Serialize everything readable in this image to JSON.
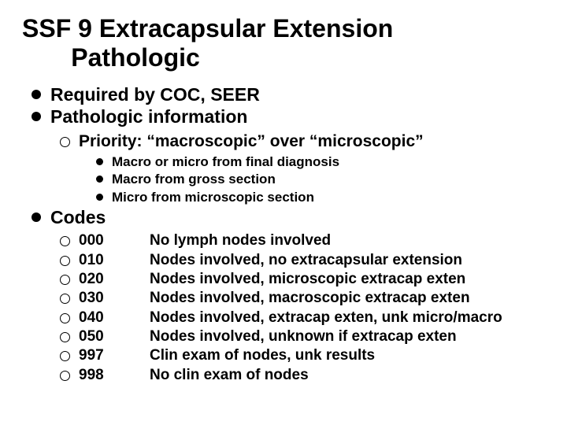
{
  "title_line1": "SSF 9  Extracapsular Extension",
  "title_line2": "Pathologic",
  "items": [
    {
      "text": "Required by COC, SEER"
    },
    {
      "text": "Pathologic information",
      "sub": [
        {
          "text": "Priority: “macroscopic” over “microscopic”",
          "sub": [
            {
              "text": "Macro or micro from final diagnosis"
            },
            {
              "text": "Macro from gross section"
            },
            {
              "text": "Micro from microscopic section"
            }
          ]
        }
      ]
    },
    {
      "text": "Codes",
      "codes": [
        {
          "code": "000",
          "desc": "No lymph nodes involved"
        },
        {
          "code": "010",
          "desc": "Nodes involved, no extracapsular extension"
        },
        {
          "code": "020",
          "desc": "Nodes involved, microscopic extracap exten"
        },
        {
          "code": "030",
          "desc": "Nodes involved, macroscopic extracap exten"
        },
        {
          "code": "040",
          "desc": "Nodes involved, extracap exten, unk micro/macro"
        },
        {
          "code": "050",
          "desc": "Nodes involved, unknown if extracap exten"
        },
        {
          "code": "997",
          "desc": "Clin exam of nodes, unk results"
        },
        {
          "code": "998",
          "desc": "No clin exam of nodes"
        }
      ]
    }
  ]
}
